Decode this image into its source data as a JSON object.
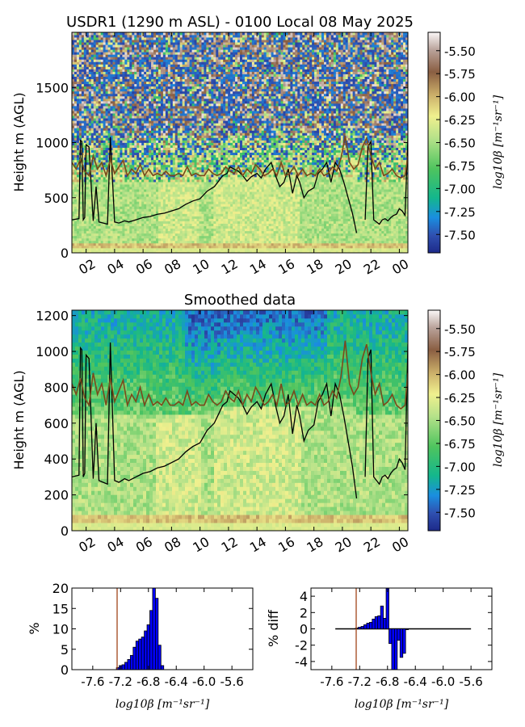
{
  "chart_data": [
    {
      "type": "heatmap",
      "title": "USDR1 (1290 m ASL) - 0100 Local 08 May 2025",
      "ylabel": "Height m (AGL)",
      "x_ticks": [
        "02",
        "04",
        "06",
        "08",
        "10",
        "12",
        "14",
        "16",
        "18",
        "20",
        "22",
        "00"
      ],
      "x_range_hours": [
        1.0,
        24.6
      ],
      "ylim": [
        0,
        2000
      ],
      "y_ticks": [
        0,
        500,
        1000,
        1500
      ],
      "colorbar": {
        "label": "log10β [m⁻¹sr⁻¹]",
        "range": [
          -7.7,
          -5.3
        ],
        "ticks": [
          "-5.50",
          "-5.75",
          "-6.00",
          "-6.25",
          "-6.50",
          "-6.75",
          "-7.00",
          "-7.25",
          "-7.50"
        ]
      },
      "series": [
        {
          "style": "black",
          "x": [
            1.0,
            1.5,
            1.6,
            1.7,
            1.8,
            1.9,
            2.0,
            2.2,
            2.5,
            2.7,
            2.9,
            3.2,
            3.5,
            3.7,
            4.0,
            4.3,
            4.5,
            4.7,
            5.0,
            5.5,
            6.0,
            6.5,
            7.0,
            7.5,
            8.0,
            8.5,
            9.0,
            9.5,
            10.0,
            10.5,
            11.0,
            11.3,
            11.6,
            11.9,
            12.1,
            12.4,
            12.7,
            13.0,
            13.3,
            13.6,
            14.0,
            14.3,
            14.6,
            15.0,
            15.3,
            15.6,
            15.9,
            16.2,
            16.5,
            16.8,
            17.0,
            17.3,
            17.6,
            18.0,
            18.3,
            18.6,
            18.9,
            19.2,
            19.5,
            19.8,
            20.1,
            20.4,
            20.7,
            21.0
          ],
          "y": [
            300,
            310,
            1020,
            1010,
            300,
            320,
            980,
            960,
            290,
            600,
            280,
            270,
            260,
            1050,
            280,
            270,
            280,
            290,
            280,
            300,
            320,
            330,
            350,
            360,
            380,
            400,
            440,
            470,
            490,
            560,
            600,
            650,
            700,
            720,
            780,
            760,
            740,
            700,
            650,
            690,
            720,
            680,
            760,
            820,
            700,
            600,
            640,
            760,
            540,
            700,
            640,
            500,
            560,
            590,
            720,
            760,
            820,
            640,
            820,
            760,
            640,
            500,
            360,
            180
          ]
        },
        {
          "style": "black",
          "x": [
            21.6,
            21.8,
            22.0,
            22.2,
            22.4,
            22.6,
            22.8,
            23.0,
            23.2,
            23.4,
            23.6,
            23.8,
            24.0,
            24.2,
            24.4,
            24.6
          ],
          "y": [
            300,
            960,
            1010,
            300,
            280,
            260,
            300,
            310,
            290,
            320,
            340,
            350,
            400,
            380,
            340,
            1040
          ]
        },
        {
          "style": "brown",
          "x": [
            1.0,
            1.3,
            1.6,
            1.9,
            2.2,
            2.5,
            2.8,
            3.1,
            3.4,
            3.7,
            4.0,
            4.3,
            4.6,
            4.9,
            5.2,
            5.5,
            5.8,
            6.1,
            6.4,
            6.7,
            7.0,
            7.3,
            7.6,
            7.9,
            8.2,
            8.5,
            8.8,
            9.1,
            9.4,
            9.7,
            10.0,
            10.3,
            10.6,
            10.9,
            11.2,
            11.5,
            11.8,
            12.1,
            12.4,
            12.7,
            13.0,
            13.3,
            13.6,
            13.9,
            14.2,
            14.5,
            14.8,
            15.1,
            15.4,
            15.7,
            16.0,
            16.3,
            16.6,
            16.9,
            17.2,
            17.5,
            17.8,
            18.1,
            18.4,
            18.7,
            19.0,
            19.3,
            19.6,
            19.9,
            20.2,
            20.5,
            20.8,
            21.1,
            21.4,
            21.7,
            22.0,
            22.3,
            22.6,
            22.9,
            23.2,
            23.5,
            23.8,
            24.1,
            24.4,
            24.6
          ],
          "y": [
            820,
            760,
            850,
            740,
            700,
            880,
            760,
            820,
            700,
            850,
            720,
            780,
            840,
            700,
            760,
            720,
            800,
            700,
            760,
            700,
            720,
            700,
            740,
            700,
            700,
            720,
            700,
            780,
            700,
            720,
            700,
            700,
            760,
            720,
            700,
            720,
            780,
            740,
            720,
            780,
            700,
            760,
            720,
            800,
            760,
            700,
            720,
            760,
            700,
            820,
            700,
            720,
            780,
            700,
            760,
            700,
            720,
            700,
            760,
            700,
            720,
            780,
            740,
            860,
            1060,
            820,
            760,
            800,
            960,
            1040,
            880,
            760,
            820,
            700,
            720,
            760,
            700,
            680,
            700,
            880
          ]
        }
      ]
    },
    {
      "type": "heatmap",
      "title": "Smoothed data",
      "ylabel": "Height m (AGL)",
      "x_ticks": [
        "02",
        "04",
        "06",
        "08",
        "10",
        "12",
        "14",
        "16",
        "18",
        "20",
        "22",
        "00"
      ],
      "x_range_hours": [
        1.0,
        24.6
      ],
      "ylim": [
        0,
        1230
      ],
      "y_ticks": [
        0,
        200,
        400,
        600,
        800,
        1000,
        1200
      ],
      "colorbar": {
        "label": "log10β [m⁻¹sr⁻¹]",
        "range": [
          -7.7,
          -5.3
        ],
        "ticks": [
          "-5.50",
          "-5.75",
          "-6.00",
          "-6.25",
          "-6.50",
          "-6.75",
          "-7.00",
          "-7.25",
          "-7.50"
        ]
      }
    },
    {
      "type": "bar",
      "ylabel": "%",
      "xlabel": "log10β [m⁻¹sr⁻¹]",
      "x_ticks": [
        "-7.6",
        "-7.2",
        "-6.8",
        "-6.4",
        "-6.0",
        "-5.6"
      ],
      "xlim": [
        -7.9,
        -5.3
      ],
      "ylim": [
        0,
        20
      ],
      "y_ticks": [
        0,
        5,
        10,
        15,
        20
      ],
      "threshold": -7.25,
      "bin_width": 0.04,
      "x": [
        -7.24,
        -7.2,
        -7.16,
        -7.12,
        -7.08,
        -7.04,
        -7.0,
        -6.96,
        -6.92,
        -6.88,
        -6.84,
        -6.8,
        -6.76,
        -6.72,
        -6.68,
        -6.64,
        -6.6
      ],
      "values": [
        0.5,
        1.0,
        1.2,
        1.8,
        2.5,
        3.5,
        5.5,
        7.0,
        7.5,
        8.0,
        9.5,
        11.0,
        14.5,
        20.0,
        17.5,
        6.0,
        1.0
      ]
    },
    {
      "type": "bar",
      "ylabel": "% diff",
      "xlabel": "log10β [m⁻¹sr⁻¹]",
      "x_ticks": [
        "-7.6",
        "-7.2",
        "-6.8",
        "-6.4",
        "-6.0",
        "-5.6"
      ],
      "xlim": [
        -7.9,
        -5.3
      ],
      "ylim": [
        -5,
        5
      ],
      "y_ticks": [
        4,
        2,
        0,
        -2,
        -4
      ],
      "threshold": -7.25,
      "bin_width": 0.04,
      "x": [
        -7.24,
        -7.2,
        -7.16,
        -7.12,
        -7.08,
        -7.04,
        -7.0,
        -6.96,
        -6.92,
        -6.88,
        -6.84,
        -6.8,
        -6.76,
        -6.72,
        -6.68,
        -6.64,
        -6.6,
        -6.56,
        -6.52
      ],
      "values": [
        0.1,
        0.2,
        0.3,
        0.5,
        0.7,
        0.8,
        1.2,
        1.5,
        1.6,
        2.8,
        1.3,
        5.0,
        -1.8,
        -6.0,
        -5.0,
        -1.4,
        -3.5,
        -3.0,
        -0.1
      ]
    }
  ]
}
